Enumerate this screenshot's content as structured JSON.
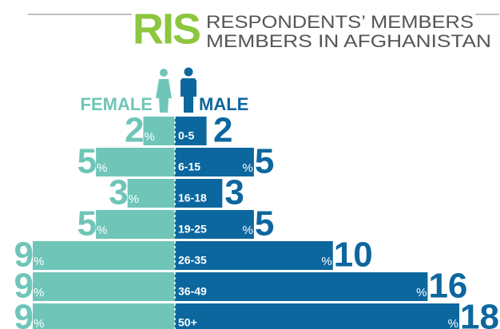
{
  "chart_data": {
    "type": "pyramid",
    "brand": "RIS",
    "title": "RESPONDENTS’ MEMBERS",
    "subtitle": "MEMBERS IN AFGHANISTAN",
    "unit": "%",
    "categories": [
      "0-5",
      "6-15",
      "16-18",
      "19-25",
      "26-35",
      "36-49",
      "50+"
    ],
    "series": [
      {
        "name": "FEMALE",
        "color": "#6fc6b8",
        "values": [
          2,
          5,
          3,
          5,
          9,
          9,
          9
        ]
      },
      {
        "name": "MALE",
        "color": "#0c679e",
        "values": [
          2,
          5,
          3,
          5,
          10,
          16,
          18
        ]
      }
    ]
  }
}
